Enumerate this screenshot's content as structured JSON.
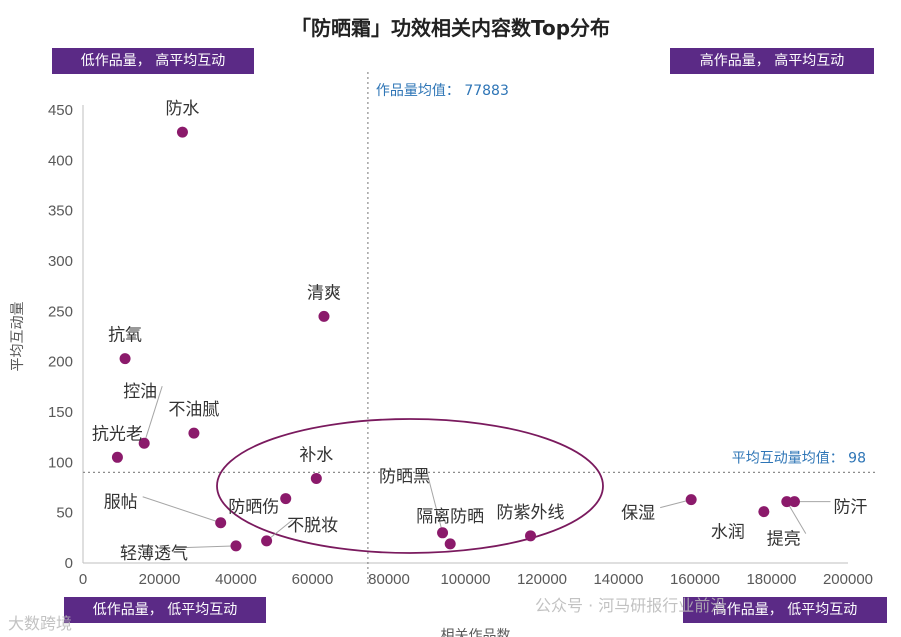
{
  "chart_data": {
    "type": "scatter",
    "title": "「防晒霜」功效相关内容数Top分布",
    "xlabel": "相关作品数",
    "ylabel": "平均互动量",
    "xlim": [
      0,
      200000
    ],
    "ylim": [
      0,
      450
    ],
    "x_ticks": [
      "0",
      "20000",
      "40000",
      "60000",
      "80000",
      "100000",
      "120000",
      "140000",
      "160000",
      "180000",
      "200000"
    ],
    "y_ticks": [
      "0",
      "50",
      "100",
      "150",
      "200",
      "250",
      "300",
      "350",
      "400",
      "450"
    ],
    "points": [
      {
        "label": "防水",
        "x": 26000,
        "y": 428
      },
      {
        "label": "清爽",
        "x": 63000,
        "y": 245
      },
      {
        "label": "抗氧",
        "x": 11000,
        "y": 203
      },
      {
        "label": "控油",
        "x": 16000,
        "y": 119
      },
      {
        "label": "不油腻",
        "x": 29000,
        "y": 129
      },
      {
        "label": "抗光老",
        "x": 9000,
        "y": 105
      },
      {
        "label": "补水",
        "x": 61000,
        "y": 84
      },
      {
        "label": "防晒伤",
        "x": 53000,
        "y": 64
      },
      {
        "label": "服帖",
        "x": 36000,
        "y": 40
      },
      {
        "label": "轻薄透气",
        "x": 40000,
        "y": 17
      },
      {
        "label": "不脱妆",
        "x": 48000,
        "y": 22
      },
      {
        "label": "防晒黑",
        "x": 94000,
        "y": 30
      },
      {
        "label": "隔离防晒",
        "x": 96000,
        "y": 19
      },
      {
        "label": "防紫外线",
        "x": 117000,
        "y": 27
      },
      {
        "label": "保湿",
        "x": 159000,
        "y": 63
      },
      {
        "label": "水润",
        "x": 178000,
        "y": 51
      },
      {
        "label": "提亮",
        "x": 184000,
        "y": 61
      },
      {
        "label": "防汗",
        "x": 186000,
        "y": 61
      }
    ],
    "mean_x": 77883,
    "mean_y": 98,
    "mean_x_label": "作品量均值： 77883",
    "mean_y_label": "平均互动量均值： 98",
    "colors": {
      "point": "#8b1a6b",
      "quadrant_bg": "#5b2a86",
      "mean_text": "#2e75b6",
      "ellipse": "#7a1a5e"
    }
  },
  "quadrants": {
    "top_left": "低作品量， 高平均互动",
    "top_right": "高作品量， 高平均互动",
    "bottom_left": "低作品量， 低平均互动",
    "bottom_right": "高作品量， 低平均互动"
  },
  "watermarks": {
    "left": "大数跨境",
    "right": "公众号 · 河马研报行业前沿"
  }
}
